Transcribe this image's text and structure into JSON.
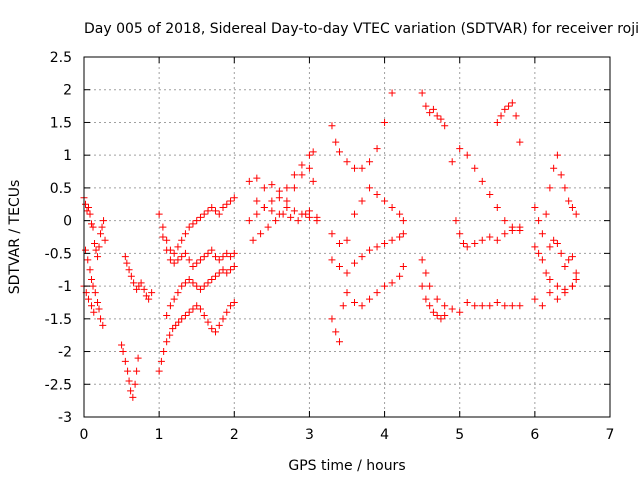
{
  "chart_data": {
    "type": "scatter",
    "title": "Day 005 of 2018, Sidereal Day-to-day VTEC variation (SDTVAR) for receiver roji",
    "xlabel": "GPS time / hours",
    "ylabel": "SDTVAR / TECUs",
    "xlim": [
      0,
      7
    ],
    "ylim": [
      -3,
      2.5
    ],
    "xticks": [
      0,
      1,
      2,
      3,
      4,
      5,
      6,
      7
    ],
    "yticks": [
      -3,
      -2.5,
      -2,
      -1.5,
      -1,
      -0.5,
      0,
      0.5,
      1,
      1.5,
      2,
      2.5
    ],
    "grid": true,
    "marker": "+",
    "color": "#ff0000",
    "series": [
      {
        "name": "SDTVAR",
        "x": [
          0.0,
          0.02,
          0.04,
          0.06,
          0.08,
          0.1,
          0.12,
          0.14,
          0.16,
          0.18,
          0.2,
          0.22,
          0.24,
          0.26,
          0.28,
          0.02,
          0.05,
          0.08,
          0.1,
          0.12,
          0.15,
          0.18,
          0.2,
          0.22,
          0.25,
          0.0,
          0.03,
          0.06,
          0.1,
          0.13,
          0.5,
          0.52,
          0.55,
          0.58,
          0.6,
          0.62,
          0.65,
          0.68,
          0.7,
          0.72,
          0.55,
          0.57,
          0.6,
          0.63,
          0.66,
          0.7,
          0.73,
          0.76,
          0.8,
          0.83,
          0.86,
          0.9,
          1.0,
          1.03,
          1.06,
          1.1,
          1.14,
          1.18,
          1.22,
          1.26,
          1.3,
          1.35,
          1.4,
          1.45,
          1.5,
          1.55,
          1.6,
          1.65,
          1.7,
          1.75,
          1.8,
          1.85,
          1.9,
          1.95,
          2.0,
          1.0,
          1.05,
          1.1,
          1.15,
          1.2,
          1.25,
          1.3,
          1.35,
          1.4,
          1.45,
          1.5,
          1.55,
          1.6,
          1.65,
          1.7,
          1.75,
          1.8,
          1.85,
          1.9,
          1.95,
          2.0,
          1.05,
          1.1,
          1.15,
          1.2,
          1.25,
          1.3,
          1.35,
          1.4,
          1.45,
          1.5,
          1.55,
          1.6,
          1.65,
          1.7,
          1.75,
          1.8,
          1.85,
          1.9,
          1.95,
          2.0,
          1.1,
          1.15,
          1.2,
          1.25,
          1.3,
          1.35,
          1.4,
          1.45,
          1.5,
          1.55,
          1.6,
          1.65,
          1.7,
          1.75,
          1.8,
          1.85,
          1.9,
          1.95,
          2.0,
          2.2,
          2.3,
          2.4,
          2.5,
          2.6,
          2.7,
          2.8,
          2.9,
          3.0,
          3.05,
          2.2,
          2.3,
          2.4,
          2.5,
          2.6,
          2.7,
          2.8,
          2.9,
          3.0,
          3.05,
          2.25,
          2.35,
          2.45,
          2.55,
          2.65,
          2.75,
          2.85,
          2.95,
          3.0,
          3.1,
          2.3,
          2.4,
          2.5,
          2.6,
          2.7,
          2.8,
          2.9,
          3.0,
          3.1,
          3.3,
          3.35,
          3.4,
          3.5,
          3.6,
          3.7,
          3.8,
          3.9,
          4.0,
          4.1,
          3.3,
          3.4,
          3.5,
          3.6,
          3.7,
          3.8,
          3.9,
          4.0,
          4.1,
          4.2,
          4.25,
          3.3,
          3.4,
          3.5,
          3.6,
          3.7,
          3.8,
          3.9,
          4.0,
          4.1,
          4.2,
          4.25,
          3.3,
          3.35,
          3.4,
          3.45,
          3.5,
          3.6,
          3.7,
          3.8,
          3.9,
          4.0,
          4.1,
          4.2,
          4.25,
          4.5,
          4.55,
          4.6,
          4.65,
          4.7,
          4.75,
          4.8,
          4.5,
          4.55,
          4.6,
          4.7,
          4.8,
          4.9,
          5.0,
          5.1,
          5.2,
          5.3,
          5.4,
          5.5,
          5.6,
          5.7,
          5.8,
          4.5,
          4.55,
          4.6,
          4.65,
          4.7,
          4.75,
          4.8,
          4.9,
          5.0,
          5.1,
          5.2,
          5.3,
          5.4,
          5.5,
          5.6,
          5.7,
          5.8,
          4.95,
          5.0,
          5.05,
          5.1,
          5.2,
          5.3,
          5.4,
          5.5,
          5.6,
          5.7,
          5.8,
          5.5,
          5.55,
          5.6,
          5.65,
          5.7,
          5.75,
          5.8,
          6.0,
          6.05,
          6.1,
          6.15,
          6.2,
          6.25,
          6.3,
          6.35,
          6.4,
          6.45,
          6.5,
          6.55,
          6.0,
          6.05,
          6.1,
          6.15,
          6.2,
          6.3,
          6.4,
          6.5,
          6.55,
          6.0,
          6.1,
          6.2,
          6.3,
          6.4,
          6.5,
          6.55,
          6.2,
          6.25,
          6.3,
          6.35,
          6.4,
          6.45,
          6.5
        ],
        "y": [
          0.35,
          0.25,
          0.15,
          0.2,
          0.1,
          -0.05,
          -0.1,
          -0.35,
          -0.45,
          -0.55,
          -0.4,
          -0.2,
          -0.1,
          0.0,
          -0.3,
          -0.45,
          -0.6,
          -0.75,
          -0.9,
          -1.0,
          -1.1,
          -1.25,
          -1.35,
          -1.5,
          -1.6,
          -1.0,
          -1.1,
          -1.2,
          -1.3,
          -1.4,
          -1.9,
          -2.0,
          -2.15,
          -2.3,
          -2.45,
          -2.6,
          -2.7,
          -2.5,
          -2.3,
          -2.1,
          -0.55,
          -0.65,
          -0.75,
          -0.85,
          -0.95,
          -1.05,
          -1.0,
          -0.95,
          -1.05,
          -1.15,
          -1.2,
          -1.1,
          -2.3,
          -2.15,
          -2.0,
          -1.85,
          -1.75,
          -1.65,
          -1.6,
          -1.55,
          -1.5,
          -1.45,
          -1.4,
          -1.35,
          -1.3,
          -1.35,
          -1.45,
          -1.55,
          -1.65,
          -1.7,
          -1.6,
          -1.5,
          -1.4,
          -1.3,
          -1.25,
          0.1,
          -0.1,
          -0.3,
          -0.45,
          -0.5,
          -0.4,
          -0.3,
          -0.2,
          -0.1,
          -0.05,
          0.0,
          0.05,
          0.1,
          0.15,
          0.2,
          0.15,
          0.1,
          0.2,
          0.25,
          0.3,
          0.35,
          -0.25,
          -0.45,
          -0.6,
          -0.65,
          -0.6,
          -0.55,
          -0.5,
          -0.6,
          -0.7,
          -0.65,
          -0.6,
          -0.55,
          -0.5,
          -0.45,
          -0.55,
          -0.6,
          -0.55,
          -0.5,
          -0.55,
          -0.5,
          -1.45,
          -1.3,
          -1.2,
          -1.1,
          -1.0,
          -0.95,
          -0.9,
          -0.95,
          -1.0,
          -1.05,
          -1.0,
          -0.95,
          -0.9,
          -0.85,
          -0.8,
          -0.75,
          -0.8,
          -0.75,
          -0.7,
          0.6,
          0.65,
          0.5,
          0.55,
          0.45,
          0.5,
          0.7,
          0.85,
          1.0,
          1.05,
          0.0,
          0.1,
          0.2,
          0.15,
          0.1,
          0.3,
          0.5,
          0.7,
          0.8,
          0.6,
          -0.3,
          -0.2,
          -0.1,
          0.0,
          0.1,
          0.05,
          0.0,
          0.1,
          0.15,
          0.05,
          0.3,
          0.2,
          0.3,
          0.35,
          0.2,
          0.15,
          0.1,
          0.05,
          0.0,
          1.45,
          1.2,
          1.05,
          0.9,
          0.8,
          0.8,
          0.9,
          1.1,
          1.5,
          1.95,
          -0.2,
          -0.35,
          -0.3,
          0.1,
          0.3,
          0.5,
          0.4,
          0.3,
          0.2,
          0.1,
          0.0,
          -0.6,
          -0.7,
          -0.8,
          -0.65,
          -0.55,
          -0.45,
          -0.4,
          -0.35,
          -0.3,
          -0.25,
          -0.2,
          -1.5,
          -1.7,
          -1.85,
          -1.3,
          -1.1,
          -1.25,
          -1.3,
          -1.2,
          -1.1,
          -1.0,
          -0.95,
          -0.85,
          -0.7,
          1.95,
          1.75,
          1.65,
          1.7,
          1.6,
          1.55,
          1.45,
          -0.6,
          -0.8,
          -1.0,
          -1.2,
          -1.3,
          -1.35,
          -1.4,
          -1.25,
          -1.3,
          -1.3,
          -1.3,
          -1.25,
          -1.3,
          -1.3,
          -1.3,
          -1.0,
          -1.2,
          -1.3,
          -1.4,
          -1.45,
          -1.5,
          -1.45,
          0.9,
          1.1,
          1.0,
          0.8,
          0.6,
          0.4,
          0.2,
          0.0,
          -0.1,
          -0.15,
          0.0,
          -0.2,
          -0.35,
          -0.4,
          -0.35,
          -0.3,
          -0.25,
          -0.3,
          -0.2,
          -0.15,
          -0.1,
          1.5,
          1.6,
          1.7,
          1.75,
          1.8,
          1.6,
          1.2,
          0.2,
          0.0,
          -0.2,
          0.1,
          0.5,
          0.8,
          1.0,
          0.7,
          0.5,
          0.3,
          0.2,
          0.1,
          -0.4,
          -0.5,
          -0.6,
          -0.8,
          -0.9,
          -1.0,
          -1.05,
          -1.0,
          -0.9,
          -1.2,
          -1.3,
          -1.1,
          -1.2,
          -1.1,
          -1.0,
          -0.8,
          -0.4,
          -0.3,
          -0.35,
          -0.5,
          -0.7,
          -0.6,
          -0.55
        ]
      }
    ]
  }
}
